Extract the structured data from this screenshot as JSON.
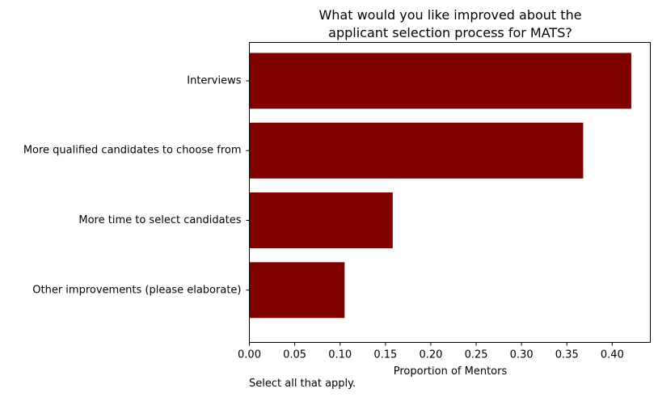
{
  "chart_data": {
    "type": "bar",
    "orientation": "horizontal",
    "title_lines": [
      "What would you like improved about the",
      "applicant selection process for MATS?"
    ],
    "xlabel": "Proportion of Mentors",
    "note": "Select all that apply.",
    "categories": [
      "Interviews",
      "More qualified candidates to choose from",
      "More time to select candidates",
      "Other improvements (please elaborate)"
    ],
    "values": [
      0.421,
      0.368,
      0.158,
      0.105
    ],
    "xlim": [
      0,
      0.442
    ],
    "xticks": [
      0.0,
      0.05,
      0.1,
      0.15,
      0.2,
      0.25,
      0.3,
      0.35,
      0.4
    ],
    "xtick_labels": [
      "0.00",
      "0.05",
      "0.10",
      "0.15",
      "0.20",
      "0.25",
      "0.30",
      "0.35",
      "0.40"
    ],
    "bar_color": "#800000",
    "grid": false,
    "legend": "none"
  }
}
